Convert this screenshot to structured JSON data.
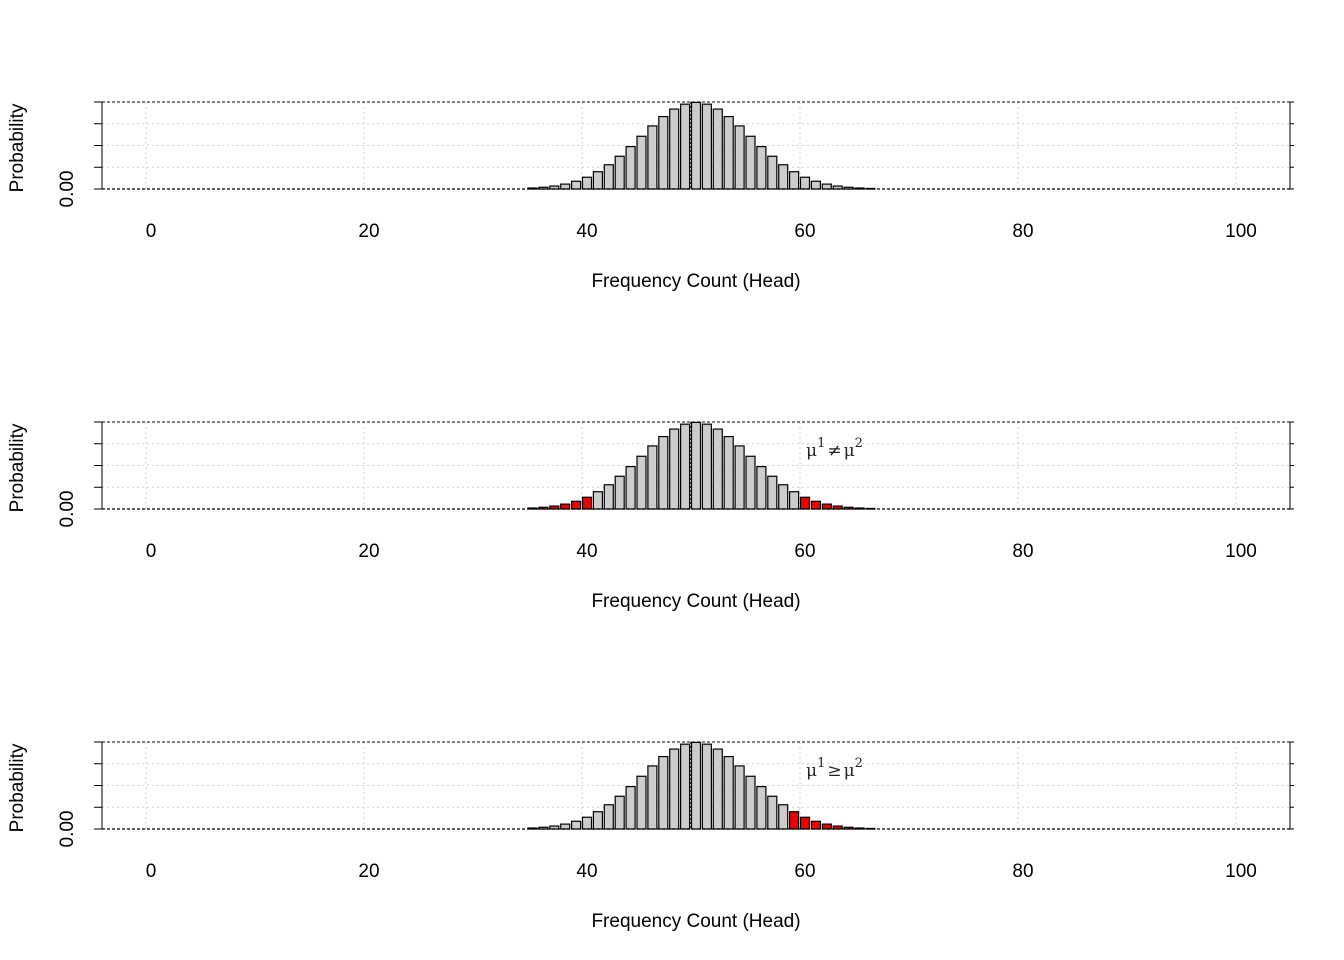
{
  "chart_data": [
    {
      "type": "bar",
      "x": [
        35,
        36,
        37,
        38,
        39,
        40,
        41,
        42,
        43,
        44,
        45,
        46,
        47,
        48,
        49,
        50,
        51,
        52,
        53,
        54,
        55,
        56,
        57,
        58,
        59,
        60,
        61,
        62,
        63,
        64,
        65,
        66
      ],
      "values": [
        0.0009,
        0.0016,
        0.0027,
        0.0045,
        0.0071,
        0.0108,
        0.0159,
        0.0223,
        0.0301,
        0.039,
        0.0485,
        0.058,
        0.0666,
        0.0735,
        0.078,
        0.0796,
        0.078,
        0.0735,
        0.0666,
        0.058,
        0.0485,
        0.039,
        0.0301,
        0.0223,
        0.0159,
        0.0108,
        0.0071,
        0.0045,
        0.0027,
        0.0016,
        0.0009,
        0.0005
      ],
      "highlighted": [],
      "bar_color": "#cccccc",
      "highlight_color": "#ee0000",
      "mean_line_x": 50,
      "xlabel": "Frequency Count (Head)",
      "ylabel": "Probability",
      "x_ticks": [
        "0",
        "20",
        "40",
        "60",
        "80",
        "100"
      ],
      "y_tick_label": "0.00",
      "xlim": [
        -5,
        105
      ],
      "ylim": [
        0,
        0.08
      ],
      "grid": true,
      "annotation": null
    },
    {
      "type": "bar",
      "x": [
        35,
        36,
        37,
        38,
        39,
        40,
        41,
        42,
        43,
        44,
        45,
        46,
        47,
        48,
        49,
        50,
        51,
        52,
        53,
        54,
        55,
        56,
        57,
        58,
        59,
        60,
        61,
        62,
        63,
        64,
        65,
        66
      ],
      "values": [
        0.0009,
        0.0016,
        0.0027,
        0.0045,
        0.0071,
        0.0108,
        0.0159,
        0.0223,
        0.0301,
        0.039,
        0.0485,
        0.058,
        0.0666,
        0.0735,
        0.078,
        0.0796,
        0.078,
        0.0735,
        0.0666,
        0.058,
        0.0485,
        0.039,
        0.0301,
        0.0223,
        0.0159,
        0.0108,
        0.0071,
        0.0045,
        0.0027,
        0.0016,
        0.0009,
        0.0005
      ],
      "highlighted": [
        35,
        36,
        37,
        38,
        39,
        40,
        60,
        61,
        62,
        63,
        64,
        65,
        66
      ],
      "bar_color": "#cccccc",
      "highlight_color": "#ee0000",
      "mean_line_x": 50,
      "xlabel": "Frequency Count (Head)",
      "ylabel": "Probability",
      "x_ticks": [
        "0",
        "20",
        "40",
        "60",
        "80",
        "100"
      ],
      "y_tick_label": "0.00",
      "xlim": [
        -5,
        105
      ],
      "ylim": [
        0,
        0.08
      ],
      "grid": true,
      "annotation": {
        "base": "μ",
        "sup1": "1",
        "op": "≠",
        "sup2": "2",
        "x": 60
      }
    },
    {
      "type": "bar",
      "x": [
        35,
        36,
        37,
        38,
        39,
        40,
        41,
        42,
        43,
        44,
        45,
        46,
        47,
        48,
        49,
        50,
        51,
        52,
        53,
        54,
        55,
        56,
        57,
        58,
        59,
        60,
        61,
        62,
        63,
        64,
        65,
        66
      ],
      "values": [
        0.0009,
        0.0016,
        0.0027,
        0.0045,
        0.0071,
        0.0108,
        0.0159,
        0.0223,
        0.0301,
        0.039,
        0.0485,
        0.058,
        0.0666,
        0.0735,
        0.078,
        0.0796,
        0.078,
        0.0735,
        0.0666,
        0.058,
        0.0485,
        0.039,
        0.0301,
        0.0223,
        0.0159,
        0.0108,
        0.0071,
        0.0045,
        0.0027,
        0.0016,
        0.0009,
        0.0005
      ],
      "highlighted": [
        59,
        60,
        61,
        62,
        63,
        64,
        65,
        66
      ],
      "bar_color": "#cccccc",
      "highlight_color": "#ee0000",
      "mean_line_x": 50,
      "xlabel": "Frequency Count (Head)",
      "ylabel": "Probability",
      "x_ticks": [
        "0",
        "20",
        "40",
        "60",
        "80",
        "100"
      ],
      "y_tick_label": "0.00",
      "xlim": [
        -5,
        105
      ],
      "ylim": [
        0,
        0.08
      ],
      "grid": true,
      "annotation": {
        "base": "μ",
        "sup1": "1",
        "op": "≥",
        "sup2": "2",
        "x": 60
      }
    }
  ]
}
